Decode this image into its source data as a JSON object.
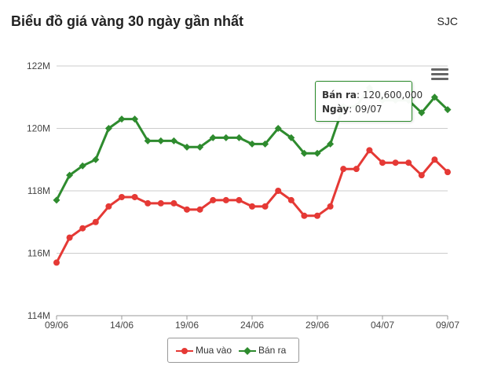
{
  "header": {
    "title": "Biểu đồ giá vàng 30 ngày gần nhất",
    "source": "SJC"
  },
  "tooltip": {
    "series_label": "Bán ra",
    "series_value": "120,600,000",
    "date_label": "Ngày",
    "date_value": "09/07"
  },
  "menu": {
    "icon": "hamburger-menu-icon"
  },
  "colors": {
    "buy": "#e53935",
    "sell": "#2e8b2e",
    "grid": "#cccccc",
    "axis": "#999999",
    "tooltip_border": "#2a8a2a"
  },
  "chart_data": {
    "type": "line",
    "title": "Biểu đồ giá vàng 30 ngày gần nhất",
    "xlabel": "",
    "ylabel": "",
    "ylim": [
      114000000,
      122000000
    ],
    "y_ticks": [
      114000000,
      116000000,
      118000000,
      120000000,
      122000000
    ],
    "y_tick_labels": [
      "114M",
      "116M",
      "118M",
      "120M",
      "122M"
    ],
    "x_tick_labels": [
      "09/06",
      "14/06",
      "19/06",
      "24/06",
      "29/06",
      "04/07",
      "09/07"
    ],
    "x_tick_dates": [
      "2025-06-09",
      "2025-06-14",
      "2025-06-19",
      "2025-06-24",
      "2025-06-29",
      "2025-07-04",
      "2025-07-09"
    ],
    "x_range": [
      "2025-06-09",
      "2025-07-09"
    ],
    "grid": true,
    "legend": "bottom-center",
    "series": [
      {
        "name": "Mua vào",
        "color": "#e53935",
        "marker": "circle",
        "points": [
          [
            "2025-06-09",
            115700000
          ],
          [
            "2025-06-10",
            116500000
          ],
          [
            "2025-06-11",
            116800000
          ],
          [
            "2025-06-12",
            117000000
          ],
          [
            "2025-06-13",
            117500000
          ],
          [
            "2025-06-14",
            117800000
          ],
          [
            "2025-06-15",
            117800000
          ],
          [
            "2025-06-16",
            117600000
          ],
          [
            "2025-06-17",
            117600000
          ],
          [
            "2025-06-18",
            117600000
          ],
          [
            "2025-06-19",
            117400000
          ],
          [
            "2025-06-20",
            117400000
          ],
          [
            "2025-06-21",
            117700000
          ],
          [
            "2025-06-22",
            117700000
          ],
          [
            "2025-06-23",
            117700000
          ],
          [
            "2025-06-24",
            117500000
          ],
          [
            "2025-06-25",
            117500000
          ],
          [
            "2025-06-26",
            118000000
          ],
          [
            "2025-06-27",
            117700000
          ],
          [
            "2025-06-28",
            117200000
          ],
          [
            "2025-06-29",
            117200000
          ],
          [
            "2025-06-30",
            117500000
          ],
          [
            "2025-07-01",
            118700000
          ],
          [
            "2025-07-02",
            118700000
          ],
          [
            "2025-07-03",
            119300000
          ],
          [
            "2025-07-04",
            118900000
          ],
          [
            "2025-07-05",
            118900000
          ],
          [
            "2025-07-06",
            118900000
          ],
          [
            "2025-07-07",
            118500000
          ],
          [
            "2025-07-08",
            119000000
          ],
          [
            "2025-07-09",
            118600000
          ]
        ]
      },
      {
        "name": "Bán ra",
        "color": "#2e8b2e",
        "marker": "diamond",
        "points": [
          [
            "2025-06-09",
            117700000
          ],
          [
            "2025-06-10",
            118500000
          ],
          [
            "2025-06-11",
            118800000
          ],
          [
            "2025-06-12",
            119000000
          ],
          [
            "2025-06-13",
            120000000
          ],
          [
            "2025-06-14",
            120300000
          ],
          [
            "2025-06-15",
            120300000
          ],
          [
            "2025-06-16",
            119600000
          ],
          [
            "2025-06-17",
            119600000
          ],
          [
            "2025-06-18",
            119600000
          ],
          [
            "2025-06-19",
            119400000
          ],
          [
            "2025-06-20",
            119400000
          ],
          [
            "2025-06-21",
            119700000
          ],
          [
            "2025-06-22",
            119700000
          ],
          [
            "2025-06-23",
            119700000
          ],
          [
            "2025-06-24",
            119500000
          ],
          [
            "2025-06-25",
            119500000
          ],
          [
            "2025-06-26",
            120000000
          ],
          [
            "2025-06-27",
            119700000
          ],
          [
            "2025-06-28",
            119200000
          ],
          [
            "2025-06-29",
            119200000
          ],
          [
            "2025-06-30",
            119500000
          ],
          [
            "2025-07-01",
            120700000
          ],
          [
            "2025-07-02",
            120700000
          ],
          [
            "2025-07-03",
            121300000
          ],
          [
            "2025-07-04",
            120900000
          ],
          [
            "2025-07-05",
            120900000
          ],
          [
            "2025-07-06",
            120900000
          ],
          [
            "2025-07-07",
            120500000
          ],
          [
            "2025-07-08",
            121000000
          ],
          [
            "2025-07-09",
            120600000
          ]
        ]
      }
    ]
  }
}
